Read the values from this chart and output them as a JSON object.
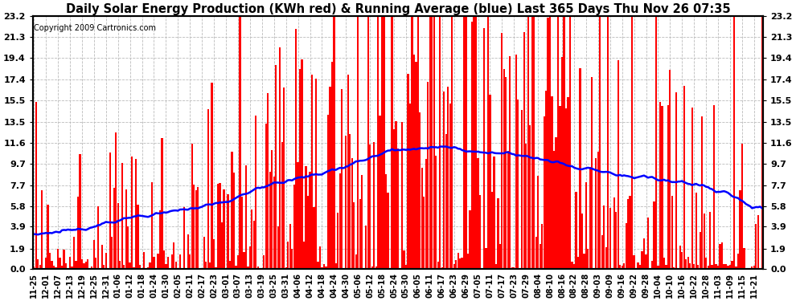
{
  "title": "Daily Solar Energy Production (KWh red) & Running Average (blue) Last 365 Days Thu Nov 26 07:35",
  "copyright_text": "Copyright 2009 Cartronics.com",
  "yticks": [
    0.0,
    1.9,
    3.9,
    5.8,
    7.7,
    9.7,
    11.6,
    13.5,
    15.5,
    17.4,
    19.4,
    21.3,
    23.2
  ],
  "bar_color": "#ff0000",
  "line_color": "#0000ff",
  "bg_color": "#ffffff",
  "grid_color": "#bbbbbb",
  "title_fontsize": 10.5,
  "copyright_fontsize": 7,
  "tick_fontsize": 7,
  "ytick_fontsize": 8,
  "x_labels": [
    "11-25",
    "12-01",
    "12-07",
    "12-13",
    "12-19",
    "12-25",
    "12-31",
    "01-06",
    "01-12",
    "01-18",
    "01-24",
    "01-30",
    "02-05",
    "02-11",
    "02-17",
    "02-23",
    "03-01",
    "03-07",
    "03-13",
    "03-19",
    "03-25",
    "03-31",
    "04-06",
    "04-12",
    "04-18",
    "04-24",
    "04-30",
    "05-06",
    "05-12",
    "05-18",
    "05-24",
    "05-30",
    "06-05",
    "06-11",
    "06-17",
    "06-23",
    "06-29",
    "07-05",
    "07-11",
    "07-17",
    "07-23",
    "07-29",
    "08-04",
    "08-10",
    "08-16",
    "08-22",
    "08-28",
    "09-03",
    "09-09",
    "09-16",
    "09-22",
    "09-28",
    "10-04",
    "10-10",
    "10-16",
    "10-22",
    "10-28",
    "11-03",
    "11-09",
    "11-15",
    "11-21"
  ]
}
